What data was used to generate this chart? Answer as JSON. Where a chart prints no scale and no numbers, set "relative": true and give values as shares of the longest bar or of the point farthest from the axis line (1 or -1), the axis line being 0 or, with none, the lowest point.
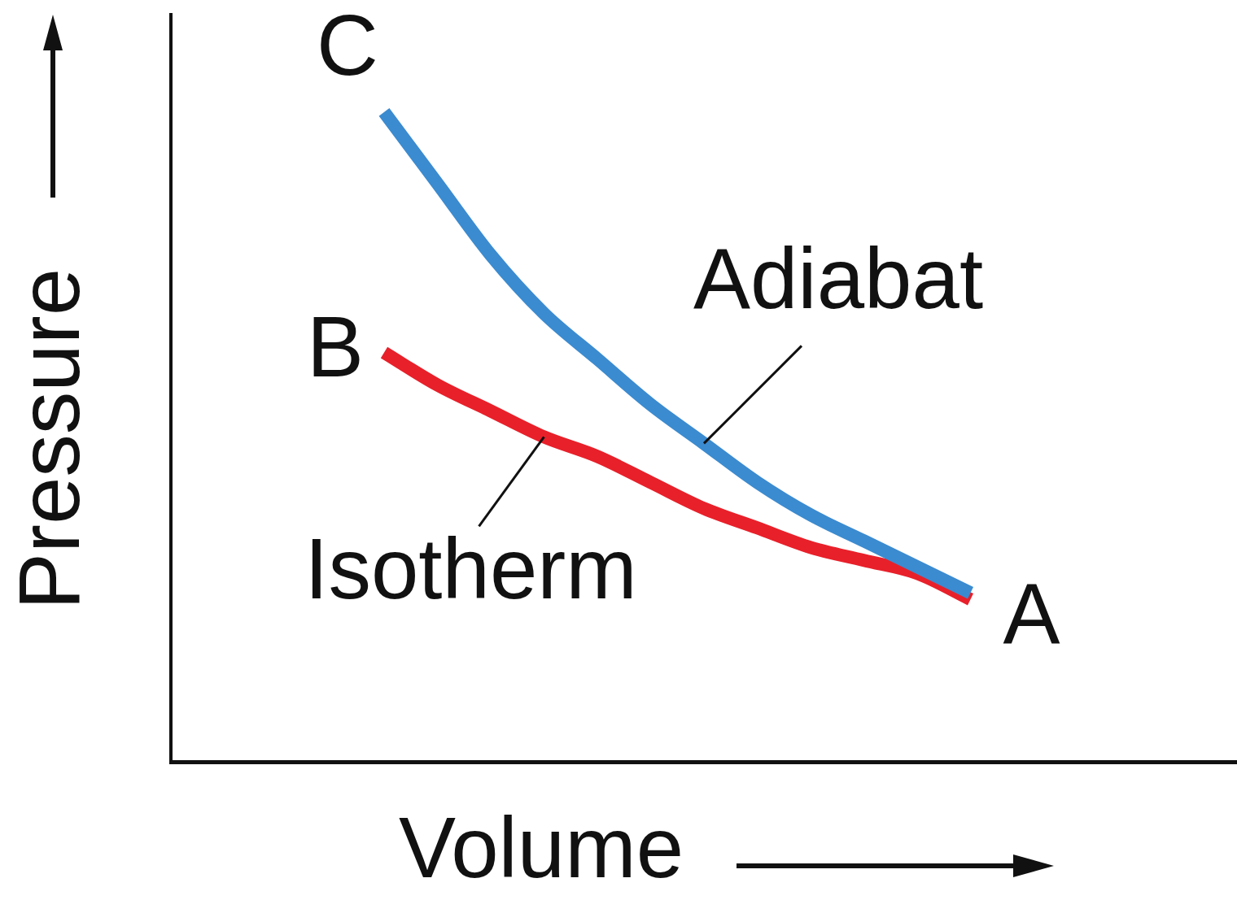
{
  "chart_data": {
    "type": "line",
    "relative": true,
    "xlabel": "Volume",
    "ylabel": "Pressure",
    "categories": [
      null,
      null,
      null,
      null,
      null,
      null,
      null,
      null,
      null,
      null,
      null,
      null,
      null,
      null,
      null,
      null,
      null,
      null,
      null,
      null,
      null
    ],
    "series": [
      {
        "name": "Adiabat",
        "color": "#3b8bd0",
        "values": [
          null,
          null,
          null,
          null,
          1.0,
          0.89,
          0.78,
          0.69,
          0.62,
          0.55,
          0.49,
          0.43,
          0.38,
          0.34,
          0.3,
          0.26,
          null,
          null,
          null,
          null,
          null
        ]
      },
      {
        "name": "Isotherm",
        "color": "#e8202a",
        "values": [
          null,
          null,
          null,
          null,
          0.63,
          0.58,
          0.54,
          0.5,
          0.47,
          0.43,
          0.39,
          0.36,
          0.33,
          0.31,
          0.29,
          0.25,
          null,
          null,
          null,
          null,
          null
        ]
      }
    ],
    "annotations": [
      "C",
      "B",
      "A"
    ],
    "grid": false,
    "legend": false,
    "marker": "none",
    "line_style": "solid",
    "tick_labels": false
  }
}
